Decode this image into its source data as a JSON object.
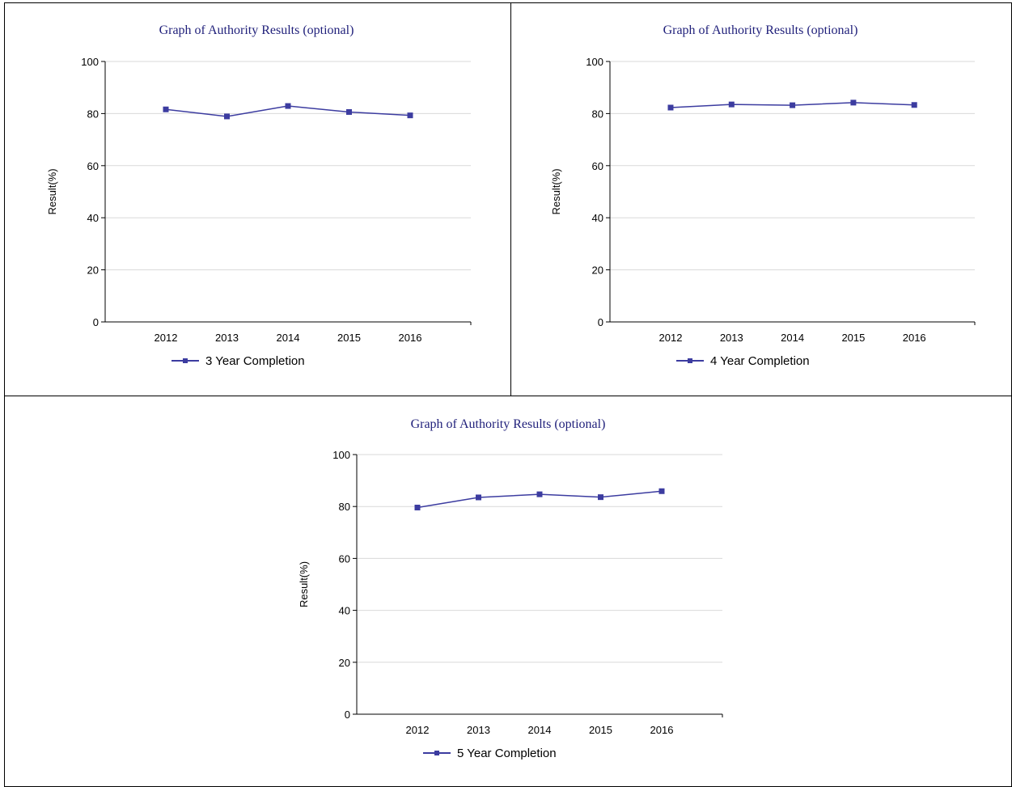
{
  "chart_data": [
    {
      "type": "line",
      "title": "Graph of Authority Results (optional)",
      "ylabel": "Result(%)",
      "xlabel": "",
      "categories": [
        "2012",
        "2013",
        "2014",
        "2015",
        "2016"
      ],
      "yticks": [
        "0",
        "20",
        "40",
        "60",
        "80",
        "100"
      ],
      "ylim": [
        0,
        100
      ],
      "grid": true,
      "legend_position": "bottom",
      "series": [
        {
          "name": "3 Year Completion",
          "values": [
            81.6,
            78.9,
            82.9,
            80.6,
            79.3
          ],
          "color": "#3c3ca0"
        }
      ]
    },
    {
      "type": "line",
      "title": "Graph of Authority Results (optional)",
      "ylabel": "Result(%)",
      "xlabel": "",
      "categories": [
        "2012",
        "2013",
        "2014",
        "2015",
        "2016"
      ],
      "yticks": [
        "0",
        "20",
        "40",
        "60",
        "80",
        "100"
      ],
      "ylim": [
        0,
        100
      ],
      "grid": true,
      "legend_position": "bottom",
      "series": [
        {
          "name": "4 Year Completion",
          "values": [
            82.3,
            83.5,
            83.2,
            84.2,
            83.3
          ],
          "color": "#3c3ca0"
        }
      ]
    },
    {
      "type": "line",
      "title": "Graph of Authority Results (optional)",
      "ylabel": "Result(%)",
      "xlabel": "",
      "categories": [
        "2012",
        "2013",
        "2014",
        "2015",
        "2016"
      ],
      "yticks": [
        "0",
        "20",
        "40",
        "60",
        "80",
        "100"
      ],
      "ylim": [
        0,
        100
      ],
      "grid": true,
      "legend_position": "bottom",
      "series": [
        {
          "name": "5 Year Completion",
          "values": [
            79.6,
            83.5,
            84.7,
            83.6,
            85.9
          ],
          "color": "#3c3ca0"
        }
      ]
    }
  ]
}
